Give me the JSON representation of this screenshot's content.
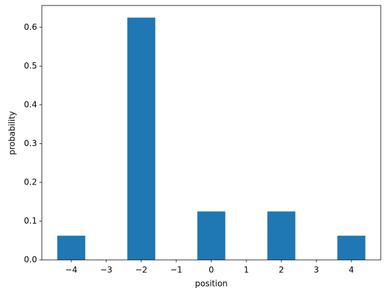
{
  "chart_data": {
    "type": "bar",
    "xlabel": "position",
    "ylabel": "probability",
    "x": [
      -4,
      -2,
      0,
      2,
      4
    ],
    "values": [
      0.0625,
      0.625,
      0.125,
      0.125,
      0.0625
    ],
    "color": "#1f77b4",
    "xlim": [
      -4.84,
      4.84
    ],
    "xticks": [
      {
        "value": -4,
        "label": "−4"
      },
      {
        "value": -3,
        "label": "−3"
      },
      {
        "value": -2,
        "label": "−2"
      },
      {
        "value": -1,
        "label": "−1"
      },
      0,
      1,
      2,
      3,
      4
    ],
    "ylim": [
      0,
      0.65625
    ],
    "yticks": [
      {
        "value": 0,
        "label": "0.0"
      },
      0.1,
      0.2,
      0.3,
      0.4,
      0.5,
      0.6
    ]
  }
}
